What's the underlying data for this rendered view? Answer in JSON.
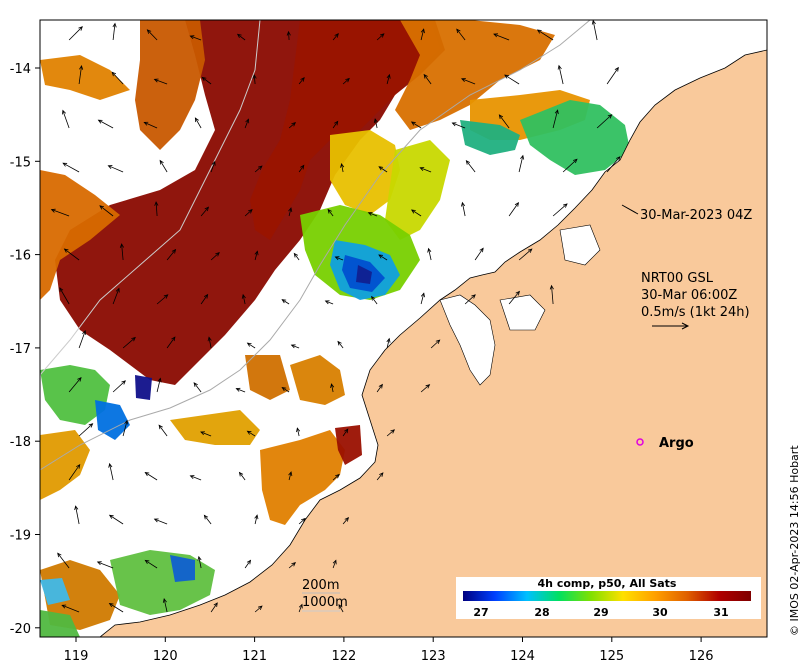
{
  "title_stamp": "30-Mar-2023 04Z",
  "current_source": {
    "line1": "NRT00 GSL",
    "line2": "30-Mar 06:00Z",
    "line3": "0.5m/s (1kt 24h)"
  },
  "argo_label": "Argo",
  "isobaths": {
    "shallow": "200m",
    "deep": "1000m"
  },
  "colorbar": {
    "title": "4h comp, p50, All Sats",
    "labels": [
      "27",
      "28",
      "29",
      "30",
      "31"
    ],
    "colors": [
      "#00007f",
      "#0040ff",
      "#00c0ff",
      "#00e060",
      "#80e000",
      "#ffe000",
      "#ffa000",
      "#e06000",
      "#b00000",
      "#7f0000"
    ]
  },
  "credit": "© IMOS 02-Apr-2023 14:56 Hobart",
  "axes": {
    "longitudes": [
      "119",
      "120",
      "121",
      "122",
      "123",
      "124",
      "125",
      "126"
    ],
    "latitudes": [
      "-14",
      "-15",
      "-16",
      "-17",
      "-18",
      "-19",
      "-20"
    ]
  },
  "colors": {
    "land": "#f9c99b",
    "sea": "#ffffff",
    "argo": "#e000e0"
  }
}
